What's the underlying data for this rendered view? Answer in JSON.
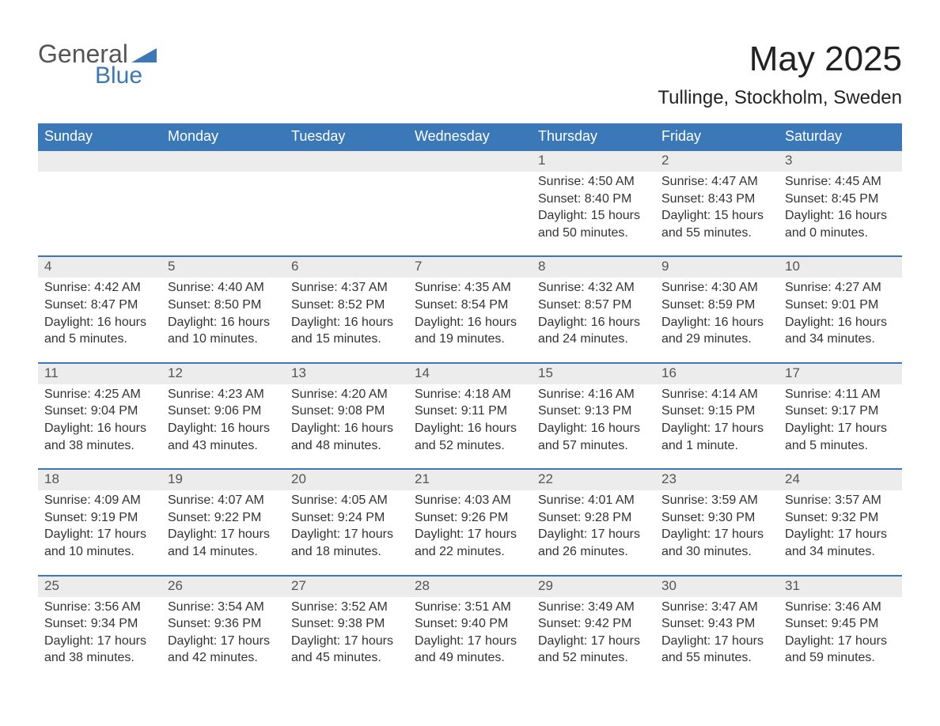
{
  "logo": {
    "word1": "General",
    "word2": "Blue",
    "icon_color": "#3b78b8"
  },
  "title": "May 2025",
  "location": "Tullinge, Stockholm, Sweden",
  "colors": {
    "header_bg": "#3b78b8",
    "header_text": "#ffffff",
    "daynum_bg": "#ececec",
    "text": "#333333",
    "page_bg": "#ffffff"
  },
  "day_headers": [
    "Sunday",
    "Monday",
    "Tuesday",
    "Wednesday",
    "Thursday",
    "Friday",
    "Saturday"
  ],
  "weeks": [
    [
      {
        "day": "",
        "sunrise": "",
        "sunset": "",
        "daylight1": "",
        "daylight2": ""
      },
      {
        "day": "",
        "sunrise": "",
        "sunset": "",
        "daylight1": "",
        "daylight2": ""
      },
      {
        "day": "",
        "sunrise": "",
        "sunset": "",
        "daylight1": "",
        "daylight2": ""
      },
      {
        "day": "",
        "sunrise": "",
        "sunset": "",
        "daylight1": "",
        "daylight2": ""
      },
      {
        "day": "1",
        "sunrise": "Sunrise: 4:50 AM",
        "sunset": "Sunset: 8:40 PM",
        "daylight1": "Daylight: 15 hours",
        "daylight2": "and 50 minutes."
      },
      {
        "day": "2",
        "sunrise": "Sunrise: 4:47 AM",
        "sunset": "Sunset: 8:43 PM",
        "daylight1": "Daylight: 15 hours",
        "daylight2": "and 55 minutes."
      },
      {
        "day": "3",
        "sunrise": "Sunrise: 4:45 AM",
        "sunset": "Sunset: 8:45 PM",
        "daylight1": "Daylight: 16 hours",
        "daylight2": "and 0 minutes."
      }
    ],
    [
      {
        "day": "4",
        "sunrise": "Sunrise: 4:42 AM",
        "sunset": "Sunset: 8:47 PM",
        "daylight1": "Daylight: 16 hours",
        "daylight2": "and 5 minutes."
      },
      {
        "day": "5",
        "sunrise": "Sunrise: 4:40 AM",
        "sunset": "Sunset: 8:50 PM",
        "daylight1": "Daylight: 16 hours",
        "daylight2": "and 10 minutes."
      },
      {
        "day": "6",
        "sunrise": "Sunrise: 4:37 AM",
        "sunset": "Sunset: 8:52 PM",
        "daylight1": "Daylight: 16 hours",
        "daylight2": "and 15 minutes."
      },
      {
        "day": "7",
        "sunrise": "Sunrise: 4:35 AM",
        "sunset": "Sunset: 8:54 PM",
        "daylight1": "Daylight: 16 hours",
        "daylight2": "and 19 minutes."
      },
      {
        "day": "8",
        "sunrise": "Sunrise: 4:32 AM",
        "sunset": "Sunset: 8:57 PM",
        "daylight1": "Daylight: 16 hours",
        "daylight2": "and 24 minutes."
      },
      {
        "day": "9",
        "sunrise": "Sunrise: 4:30 AM",
        "sunset": "Sunset: 8:59 PM",
        "daylight1": "Daylight: 16 hours",
        "daylight2": "and 29 minutes."
      },
      {
        "day": "10",
        "sunrise": "Sunrise: 4:27 AM",
        "sunset": "Sunset: 9:01 PM",
        "daylight1": "Daylight: 16 hours",
        "daylight2": "and 34 minutes."
      }
    ],
    [
      {
        "day": "11",
        "sunrise": "Sunrise: 4:25 AM",
        "sunset": "Sunset: 9:04 PM",
        "daylight1": "Daylight: 16 hours",
        "daylight2": "and 38 minutes."
      },
      {
        "day": "12",
        "sunrise": "Sunrise: 4:23 AM",
        "sunset": "Sunset: 9:06 PM",
        "daylight1": "Daylight: 16 hours",
        "daylight2": "and 43 minutes."
      },
      {
        "day": "13",
        "sunrise": "Sunrise: 4:20 AM",
        "sunset": "Sunset: 9:08 PM",
        "daylight1": "Daylight: 16 hours",
        "daylight2": "and 48 minutes."
      },
      {
        "day": "14",
        "sunrise": "Sunrise: 4:18 AM",
        "sunset": "Sunset: 9:11 PM",
        "daylight1": "Daylight: 16 hours",
        "daylight2": "and 52 minutes."
      },
      {
        "day": "15",
        "sunrise": "Sunrise: 4:16 AM",
        "sunset": "Sunset: 9:13 PM",
        "daylight1": "Daylight: 16 hours",
        "daylight2": "and 57 minutes."
      },
      {
        "day": "16",
        "sunrise": "Sunrise: 4:14 AM",
        "sunset": "Sunset: 9:15 PM",
        "daylight1": "Daylight: 17 hours",
        "daylight2": "and 1 minute."
      },
      {
        "day": "17",
        "sunrise": "Sunrise: 4:11 AM",
        "sunset": "Sunset: 9:17 PM",
        "daylight1": "Daylight: 17 hours",
        "daylight2": "and 5 minutes."
      }
    ],
    [
      {
        "day": "18",
        "sunrise": "Sunrise: 4:09 AM",
        "sunset": "Sunset: 9:19 PM",
        "daylight1": "Daylight: 17 hours",
        "daylight2": "and 10 minutes."
      },
      {
        "day": "19",
        "sunrise": "Sunrise: 4:07 AM",
        "sunset": "Sunset: 9:22 PM",
        "daylight1": "Daylight: 17 hours",
        "daylight2": "and 14 minutes."
      },
      {
        "day": "20",
        "sunrise": "Sunrise: 4:05 AM",
        "sunset": "Sunset: 9:24 PM",
        "daylight1": "Daylight: 17 hours",
        "daylight2": "and 18 minutes."
      },
      {
        "day": "21",
        "sunrise": "Sunrise: 4:03 AM",
        "sunset": "Sunset: 9:26 PM",
        "daylight1": "Daylight: 17 hours",
        "daylight2": "and 22 minutes."
      },
      {
        "day": "22",
        "sunrise": "Sunrise: 4:01 AM",
        "sunset": "Sunset: 9:28 PM",
        "daylight1": "Daylight: 17 hours",
        "daylight2": "and 26 minutes."
      },
      {
        "day": "23",
        "sunrise": "Sunrise: 3:59 AM",
        "sunset": "Sunset: 9:30 PM",
        "daylight1": "Daylight: 17 hours",
        "daylight2": "and 30 minutes."
      },
      {
        "day": "24",
        "sunrise": "Sunrise: 3:57 AM",
        "sunset": "Sunset: 9:32 PM",
        "daylight1": "Daylight: 17 hours",
        "daylight2": "and 34 minutes."
      }
    ],
    [
      {
        "day": "25",
        "sunrise": "Sunrise: 3:56 AM",
        "sunset": "Sunset: 9:34 PM",
        "daylight1": "Daylight: 17 hours",
        "daylight2": "and 38 minutes."
      },
      {
        "day": "26",
        "sunrise": "Sunrise: 3:54 AM",
        "sunset": "Sunset: 9:36 PM",
        "daylight1": "Daylight: 17 hours",
        "daylight2": "and 42 minutes."
      },
      {
        "day": "27",
        "sunrise": "Sunrise: 3:52 AM",
        "sunset": "Sunset: 9:38 PM",
        "daylight1": "Daylight: 17 hours",
        "daylight2": "and 45 minutes."
      },
      {
        "day": "28",
        "sunrise": "Sunrise: 3:51 AM",
        "sunset": "Sunset: 9:40 PM",
        "daylight1": "Daylight: 17 hours",
        "daylight2": "and 49 minutes."
      },
      {
        "day": "29",
        "sunrise": "Sunrise: 3:49 AM",
        "sunset": "Sunset: 9:42 PM",
        "daylight1": "Daylight: 17 hours",
        "daylight2": "and 52 minutes."
      },
      {
        "day": "30",
        "sunrise": "Sunrise: 3:47 AM",
        "sunset": "Sunset: 9:43 PM",
        "daylight1": "Daylight: 17 hours",
        "daylight2": "and 55 minutes."
      },
      {
        "day": "31",
        "sunrise": "Sunrise: 3:46 AM",
        "sunset": "Sunset: 9:45 PM",
        "daylight1": "Daylight: 17 hours",
        "daylight2": "and 59 minutes."
      }
    ]
  ]
}
